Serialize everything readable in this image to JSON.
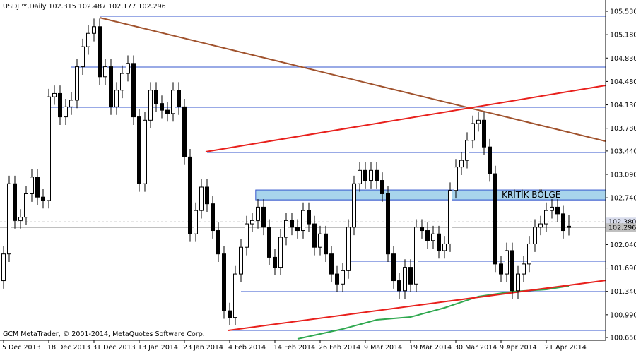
{
  "chart_data": {
    "type": "candlestick",
    "title": "USDJPY,Daily  102.315 102.487 102.177 102.296",
    "footer": "GCM MetaTrader, © 2001-2014, MetaQuotes Software Corp.",
    "categories": [
      "5 Dec 2013",
      null,
      null,
      null,
      null,
      null,
      null,
      null,
      "18 Dec 2013",
      null,
      null,
      null,
      null,
      null,
      null,
      null,
      "31 Dec 2013",
      null,
      null,
      null,
      null,
      null,
      null,
      null,
      "13 Jan 2014",
      null,
      null,
      null,
      null,
      null,
      null,
      null,
      "23 Jan 2014",
      null,
      null,
      null,
      null,
      null,
      null,
      null,
      "4 Feb 2014",
      null,
      null,
      null,
      null,
      null,
      null,
      null,
      "14 Feb 2014",
      null,
      null,
      null,
      null,
      null,
      null,
      null,
      "26 Feb 2014",
      null,
      null,
      null,
      null,
      null,
      null,
      null,
      "9 Mar 2014",
      null,
      null,
      null,
      null,
      null,
      null,
      null,
      "19 Mar 2014",
      null,
      null,
      null,
      null,
      null,
      null,
      null,
      "30 Mar 2014",
      null,
      null,
      null,
      null,
      null,
      null,
      null,
      "9 Apr 2014",
      null,
      null,
      null,
      null,
      null,
      null,
      null,
      "21 Apr 2014",
      null,
      null,
      null,
      null
    ],
    "open": [
      101.5,
      101.9,
      102.95,
      102.4,
      102.45,
      102.8,
      103.05,
      102.75,
      102.7,
      104.25,
      104.3,
      103.95,
      104.1,
      104.2,
      104.7,
      105.0,
      105.2,
      105.3,
      104.55,
      104.7,
      104.1,
      104.35,
      104.6,
      104.75,
      103.95,
      102.95,
      103.9,
      104.35,
      104.15,
      104.05,
      104.0,
      104.35,
      104.1,
      103.35,
      102.2,
      102.55,
      102.9,
      102.65,
      102.25,
      101.9,
      101.05,
      100.95,
      101.6,
      102.0,
      102.35,
      102.4,
      102.6,
      102.3,
      101.85,
      101.7,
      102.15,
      102.4,
      102.3,
      102.25,
      102.55,
      102.35,
      102.0,
      102.2,
      101.9,
      101.6,
      101.45,
      101.65,
      102.3,
      102.95,
      103.15,
      103.0,
      103.15,
      103.0,
      102.8,
      101.9,
      101.5,
      101.35,
      101.7,
      101.45,
      102.3,
      102.25,
      102.1,
      102.2,
      101.95,
      102.05,
      102.85,
      103.2,
      103.3,
      103.6,
      103.85,
      103.9,
      103.5,
      103.1,
      101.75,
      101.6,
      101.95,
      101.35,
      101.6,
      101.75,
      102.05,
      102.3,
      102.35,
      102.55,
      102.6,
      102.5,
      102.315
    ],
    "high": [
      102.02,
      103.07,
      103.07,
      102.57,
      102.92,
      103.17,
      103.17,
      102.87,
      104.37,
      104.42,
      104.42,
      104.22,
      104.32,
      104.82,
      105.12,
      105.32,
      105.42,
      105.42,
      104.82,
      104.82,
      104.47,
      104.72,
      104.87,
      104.87,
      104.07,
      104.02,
      104.47,
      104.47,
      104.27,
      104.17,
      104.47,
      104.47,
      104.22,
      103.47,
      102.67,
      103.02,
      103.02,
      102.77,
      102.37,
      102.02,
      101.17,
      101.72,
      102.12,
      102.47,
      102.52,
      102.72,
      102.72,
      102.42,
      101.97,
      102.27,
      102.52,
      102.52,
      102.42,
      102.67,
      102.67,
      102.47,
      102.32,
      102.32,
      102.02,
      101.72,
      101.77,
      102.42,
      103.07,
      103.27,
      103.27,
      103.27,
      103.27,
      103.12,
      102.92,
      102.02,
      101.62,
      101.82,
      101.82,
      102.42,
      102.42,
      102.37,
      102.32,
      102.32,
      102.17,
      102.97,
      103.32,
      103.42,
      103.72,
      103.97,
      104.02,
      104.02,
      103.62,
      103.22,
      101.87,
      102.07,
      102.07,
      101.72,
      101.87,
      102.17,
      102.42,
      102.47,
      102.67,
      102.72,
      102.72,
      102.62,
      102.487
    ],
    "low": [
      101.38,
      101.78,
      102.28,
      102.28,
      102.33,
      102.68,
      102.63,
      102.58,
      102.58,
      104.13,
      103.83,
      103.83,
      103.98,
      104.08,
      104.58,
      104.88,
      105.08,
      104.43,
      104.43,
      103.98,
      103.98,
      104.23,
      104.48,
      103.83,
      102.83,
      102.83,
      103.78,
      104.03,
      103.93,
      103.88,
      103.88,
      103.98,
      103.23,
      102.08,
      102.08,
      102.43,
      102.53,
      102.13,
      101.78,
      100.93,
      100.83,
      100.83,
      101.48,
      101.88,
      102.23,
      102.28,
      102.18,
      101.73,
      101.58,
      101.58,
      102.03,
      102.18,
      102.13,
      102.13,
      102.23,
      101.88,
      101.88,
      101.78,
      101.48,
      101.33,
      101.33,
      101.53,
      102.18,
      102.83,
      102.88,
      102.88,
      102.88,
      102.68,
      101.78,
      101.38,
      101.23,
      101.23,
      101.33,
      101.33,
      102.13,
      101.98,
      101.98,
      101.83,
      101.83,
      101.93,
      102.73,
      103.08,
      103.18,
      103.48,
      103.73,
      103.38,
      102.98,
      101.63,
      101.48,
      101.48,
      101.23,
      101.23,
      101.48,
      101.63,
      101.93,
      102.18,
      102.23,
      102.43,
      102.38,
      102.13,
      102.177
    ],
    "close": [
      101.9,
      102.95,
      102.4,
      102.45,
      102.8,
      103.05,
      102.75,
      102.7,
      104.25,
      104.3,
      103.95,
      104.1,
      104.2,
      104.7,
      105.0,
      105.2,
      105.3,
      104.55,
      104.7,
      104.1,
      104.35,
      104.6,
      104.75,
      103.95,
      102.95,
      103.9,
      104.35,
      104.15,
      104.05,
      104.0,
      104.35,
      104.1,
      103.35,
      102.2,
      102.55,
      102.9,
      102.65,
      102.25,
      101.9,
      101.05,
      100.95,
      101.6,
      102.0,
      102.35,
      102.4,
      102.6,
      102.3,
      101.85,
      101.7,
      102.15,
      102.4,
      102.3,
      102.25,
      102.55,
      102.35,
      102.0,
      102.2,
      101.9,
      101.6,
      101.45,
      101.65,
      102.3,
      102.95,
      103.15,
      103.0,
      103.15,
      103.0,
      102.8,
      101.9,
      101.5,
      101.35,
      101.7,
      101.45,
      102.3,
      102.25,
      102.1,
      102.2,
      101.95,
      102.05,
      102.85,
      103.2,
      103.3,
      103.6,
      103.85,
      103.9,
      103.5,
      103.1,
      101.75,
      101.6,
      101.95,
      101.35,
      101.6,
      101.75,
      102.05,
      102.3,
      102.35,
      102.55,
      102.6,
      102.5,
      102.25,
      102.296
    ],
    "ylim": [
      100.608,
      105.699
    ],
    "yticks": [
      {
        "value": 105.53,
        "label": "105.530"
      },
      {
        "value": 105.18,
        "label": "105.180"
      },
      {
        "value": 104.83,
        "label": "104.830"
      },
      {
        "value": 104.48,
        "label": "104.480"
      },
      {
        "value": 104.13,
        "label": "104.130"
      },
      {
        "value": 103.78,
        "label": "103.780"
      },
      {
        "value": 103.44,
        "label": "103.440"
      },
      {
        "value": 103.09,
        "label": "103.090"
      },
      {
        "value": 102.74,
        "label": "102.740"
      },
      {
        "value": 102.04,
        "label": "102.040"
      },
      {
        "value": 101.69,
        "label": "101.690"
      },
      {
        "value": 101.34,
        "label": "101.340"
      },
      {
        "value": 100.99,
        "label": "100.990"
      },
      {
        "value": 100.65,
        "label": "100.650"
      }
    ],
    "price_labels": [
      {
        "value": 102.38,
        "label": "102.380"
      },
      {
        "value": 102.296,
        "label": "102.296"
      }
    ],
    "hlines": [
      {
        "value": 105.456,
        "from": 17,
        "color": "#3355cc"
      },
      {
        "value": 104.696,
        "from": 12,
        "color": "#3355cc"
      },
      {
        "value": 104.093,
        "from": 8,
        "color": "#3355cc"
      },
      {
        "value": 103.417,
        "from": 36,
        "color": "#3355cc"
      },
      {
        "value": 102.709,
        "from": 45,
        "color": "#3355cc"
      },
      {
        "value": 101.791,
        "from": 61,
        "color": "#3355cc"
      },
      {
        "value": 101.337,
        "from": 42,
        "color": "#3355cc"
      },
      {
        "value": 100.756,
        "from": 40,
        "color": "#3355cc"
      }
    ],
    "trendlines": [
      {
        "x": [
          17,
          106.5
        ],
        "y": [
          105.435,
          103.586
        ],
        "color": "#a0522d"
      },
      {
        "x": [
          35.75,
          106.5
        ],
        "y": [
          103.428,
          104.421
        ],
        "color": "#e8201c"
      },
      {
        "x": [
          39.75,
          106.5
        ],
        "y": [
          100.756,
          101.505
        ],
        "color": "#e8201c"
      }
    ],
    "zone": {
      "x": [
        44.6,
        106.5
      ],
      "y": [
        102.857,
        102.709
      ],
      "color": "#a8d4ec",
      "label": "KRİTİK BÖLGE"
    },
    "ma": {
      "x": [
        52,
        60,
        66,
        72,
        78,
        84,
        90,
        96,
        100
      ],
      "values": [
        100.629,
        100.777,
        100.914,
        100.956,
        101.094,
        101.263,
        101.337,
        101.368,
        101.421
      ],
      "color": "#2fa84f"
    }
  }
}
